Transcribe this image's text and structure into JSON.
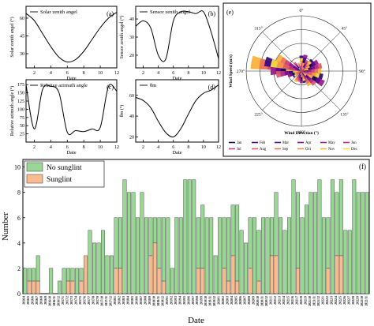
{
  "chart_data": [
    {
      "id": "a",
      "type": "line",
      "panel_label": "(a)",
      "legend": "Solar zenith angel",
      "ylabel": "Solar zenith angel (°)",
      "xlabel": "Date",
      "x_ticks": [
        2,
        4,
        6,
        8,
        10,
        12
      ],
      "y_ticks": [
        30,
        45,
        60
      ],
      "xlim": [
        1,
        12
      ],
      "ylim": [
        18,
        70
      ],
      "x": [
        1,
        2,
        3,
        4,
        5,
        6,
        7,
        8,
        9,
        10,
        11,
        12
      ],
      "values": [
        64,
        58,
        47,
        36,
        27,
        23,
        25,
        32,
        42,
        52,
        60,
        65
      ]
    },
    {
      "id": "b",
      "type": "line",
      "panel_label": "(b)",
      "legend": "Sensor zenith angel",
      "ylabel": "Sensor zenith angel (°)",
      "xlabel": "Date",
      "x_ticks": [
        2,
        4,
        6,
        8,
        10,
        12
      ],
      "y_ticks": [
        20,
        30,
        40
      ],
      "xlim": [
        1,
        12
      ],
      "ylim": [
        13,
        47
      ],
      "x": [
        1,
        2,
        3,
        4,
        5,
        6,
        7,
        8,
        9,
        10,
        11,
        12
      ],
      "values": [
        36,
        39,
        35,
        20,
        18,
        39,
        44,
        44,
        43,
        44,
        33,
        18
      ]
    },
    {
      "id": "c",
      "type": "line",
      "panel_label": "(c)",
      "legend": "Relative azimuth angle",
      "ylabel": "Relative azimuth angle (°)",
      "xlabel": "Date",
      "x_ticks": [
        2,
        4,
        6,
        8,
        10,
        12
      ],
      "y_ticks": [
        25,
        50,
        75,
        100,
        125,
        150,
        175
      ],
      "xlim": [
        1,
        12
      ],
      "ylim": [
        0,
        190
      ],
      "x": [
        1,
        2,
        3,
        4,
        5,
        6,
        7,
        8,
        9,
        10,
        11,
        12
      ],
      "values": [
        175,
        40,
        160,
        170,
        150,
        30,
        35,
        32,
        40,
        45,
        170,
        155
      ]
    },
    {
      "id": "d",
      "type": "line",
      "panel_label": "(d)",
      "legend": "θm",
      "ylabel": "θm (°)",
      "xlabel": "Date",
      "x_ticks": [
        2,
        4,
        6,
        8,
        10,
        12
      ],
      "y_ticks": [
        20,
        40,
        60
      ],
      "xlim": [
        1,
        12
      ],
      "ylim": [
        15,
        75
      ],
      "x": [
        1,
        2,
        3,
        4,
        5,
        6,
        7,
        8,
        9,
        10,
        11,
        12
      ],
      "values": [
        58,
        55,
        48,
        35,
        24,
        20,
        28,
        42,
        55,
        62,
        65,
        70
      ]
    },
    {
      "id": "e",
      "type": "polar",
      "panel_label": "(e)",
      "direction_labels": [
        "0°",
        "45°",
        "90°",
        "135°",
        "180°",
        "225°",
        "270°",
        "315°"
      ],
      "xlabel": "Wind Direction (°)",
      "ylabel": "Wind Speed (m/s)",
      "months": [
        "Jan",
        "Feb",
        "Mar",
        "Apr",
        "May",
        "Jun",
        "Jul",
        "Aug",
        "Sep",
        "Oct",
        "Nov",
        "Dec"
      ],
      "month_colors": [
        "#1a0c5a",
        "#3a0c7a",
        "#5a0c8c",
        "#7a1090",
        "#98208e",
        "#b4308a",
        "#cc4480",
        "#de5a70",
        "#ec745e",
        "#f5924c",
        "#f9b23c",
        "#f5e040"
      ],
      "directions": [
        280,
        285,
        270,
        262,
        300,
        45,
        60,
        75,
        90,
        105,
        120,
        135,
        150,
        165,
        180,
        195,
        210,
        235,
        250,
        320,
        340,
        0,
        15,
        30
      ],
      "values": [
        0.92,
        0.68,
        0.56,
        0.46,
        0.5,
        0.28,
        0.34,
        0.38,
        0.36,
        0.4,
        0.46,
        0.34,
        0.3,
        0.22,
        0.22,
        0.2,
        0.22,
        0.18,
        0.26,
        0.2,
        0.16,
        0.28,
        0.3,
        0.22
      ]
    },
    {
      "id": "f",
      "type": "bar",
      "stacked": true,
      "panel_label": "(f)",
      "xlabel": "Date",
      "ylabel": "Number",
      "y_ticks": [
        0,
        2,
        4,
        6,
        8,
        10
      ],
      "ylim": [
        0,
        10.6
      ],
      "legend": [
        {
          "label": "No sunglint",
          "color": "#98d894"
        },
        {
          "label": "Sunglint",
          "color": "#fabc8e"
        }
      ],
      "categories": [
        "2016/4",
        "2016/5",
        "2016/6",
        "2016/7",
        "2016/8",
        "2016/9",
        "2016/10",
        "2016/11",
        "2016/12",
        "2017/1",
        "2017/2",
        "2017/3",
        "2017/4",
        "2017/5",
        "2017/6",
        "2017/7",
        "2017/8",
        "2017/9",
        "2017/10",
        "2017/11",
        "2017/12",
        "2018/1",
        "2018/2",
        "2018/3",
        "2018/4",
        "2018/5",
        "2018/6",
        "2018/7",
        "2018/8",
        "2018/9",
        "2018/10",
        "2018/11",
        "2018/12",
        "2019/1",
        "2019/2",
        "2019/3",
        "2019/4",
        "2019/5",
        "2019/6",
        "2019/7",
        "2019/8",
        "2019/9",
        "2019/10",
        "2019/11",
        "2019/12",
        "2020/1",
        "2020/2",
        "2020/3",
        "2020/4",
        "2020/5",
        "2020/6",
        "2020/7",
        "2020/8",
        "2020/9",
        "2020/10",
        "2020/11",
        "2020/12",
        "2021/1",
        "2021/2",
        "2021/3",
        "2021/4",
        "2021/5",
        "2021/6",
        "2021/7",
        "2021/8",
        "2021/9",
        "2021/10",
        "2021/11",
        "2021/12",
        "2022/1",
        "2022/2",
        "2022/3",
        "2022/4",
        "2022/5",
        "2022/6",
        "2022/7",
        "2022/8",
        "2022/9",
        "2022/10",
        "2022/11"
      ],
      "series": [
        {
          "name": "No sunglint",
          "values": [
            2,
            1,
            1,
            2,
            0,
            0,
            2,
            0,
            1,
            2,
            1,
            1,
            2,
            1,
            0,
            5,
            4,
            4,
            5,
            3,
            3,
            4,
            4,
            9,
            8,
            8,
            6,
            8,
            6,
            3,
            2,
            4,
            5,
            6,
            2,
            6,
            6,
            9,
            9,
            9,
            4,
            5,
            6,
            6,
            3,
            6,
            4,
            5,
            4,
            6,
            5,
            4,
            4,
            6,
            4,
            6,
            6,
            3,
            5,
            6,
            5,
            6,
            9,
            6,
            6,
            7,
            8,
            8,
            9,
            6,
            4,
            9,
            5,
            6,
            5,
            5,
            9,
            8,
            8,
            8
          ]
        },
        {
          "name": "Sunglint",
          "values": [
            0,
            1,
            1,
            1,
            0,
            0,
            0,
            0,
            0,
            0,
            1,
            1,
            0,
            1,
            3,
            0,
            0,
            0,
            0,
            0,
            0,
            2,
            2,
            0,
            0,
            0,
            0,
            0,
            0,
            3,
            4,
            2,
            1,
            0,
            0,
            0,
            0,
            0,
            0,
            0,
            2,
            2,
            0,
            0,
            0,
            0,
            2,
            1,
            3,
            1,
            0,
            0,
            2,
            0,
            1,
            0,
            0,
            3,
            3,
            0,
            0,
            0,
            0,
            2,
            0,
            0,
            0,
            0,
            0,
            0,
            2,
            0,
            3,
            3,
            0,
            0,
            0,
            0,
            0,
            0
          ]
        }
      ]
    }
  ]
}
